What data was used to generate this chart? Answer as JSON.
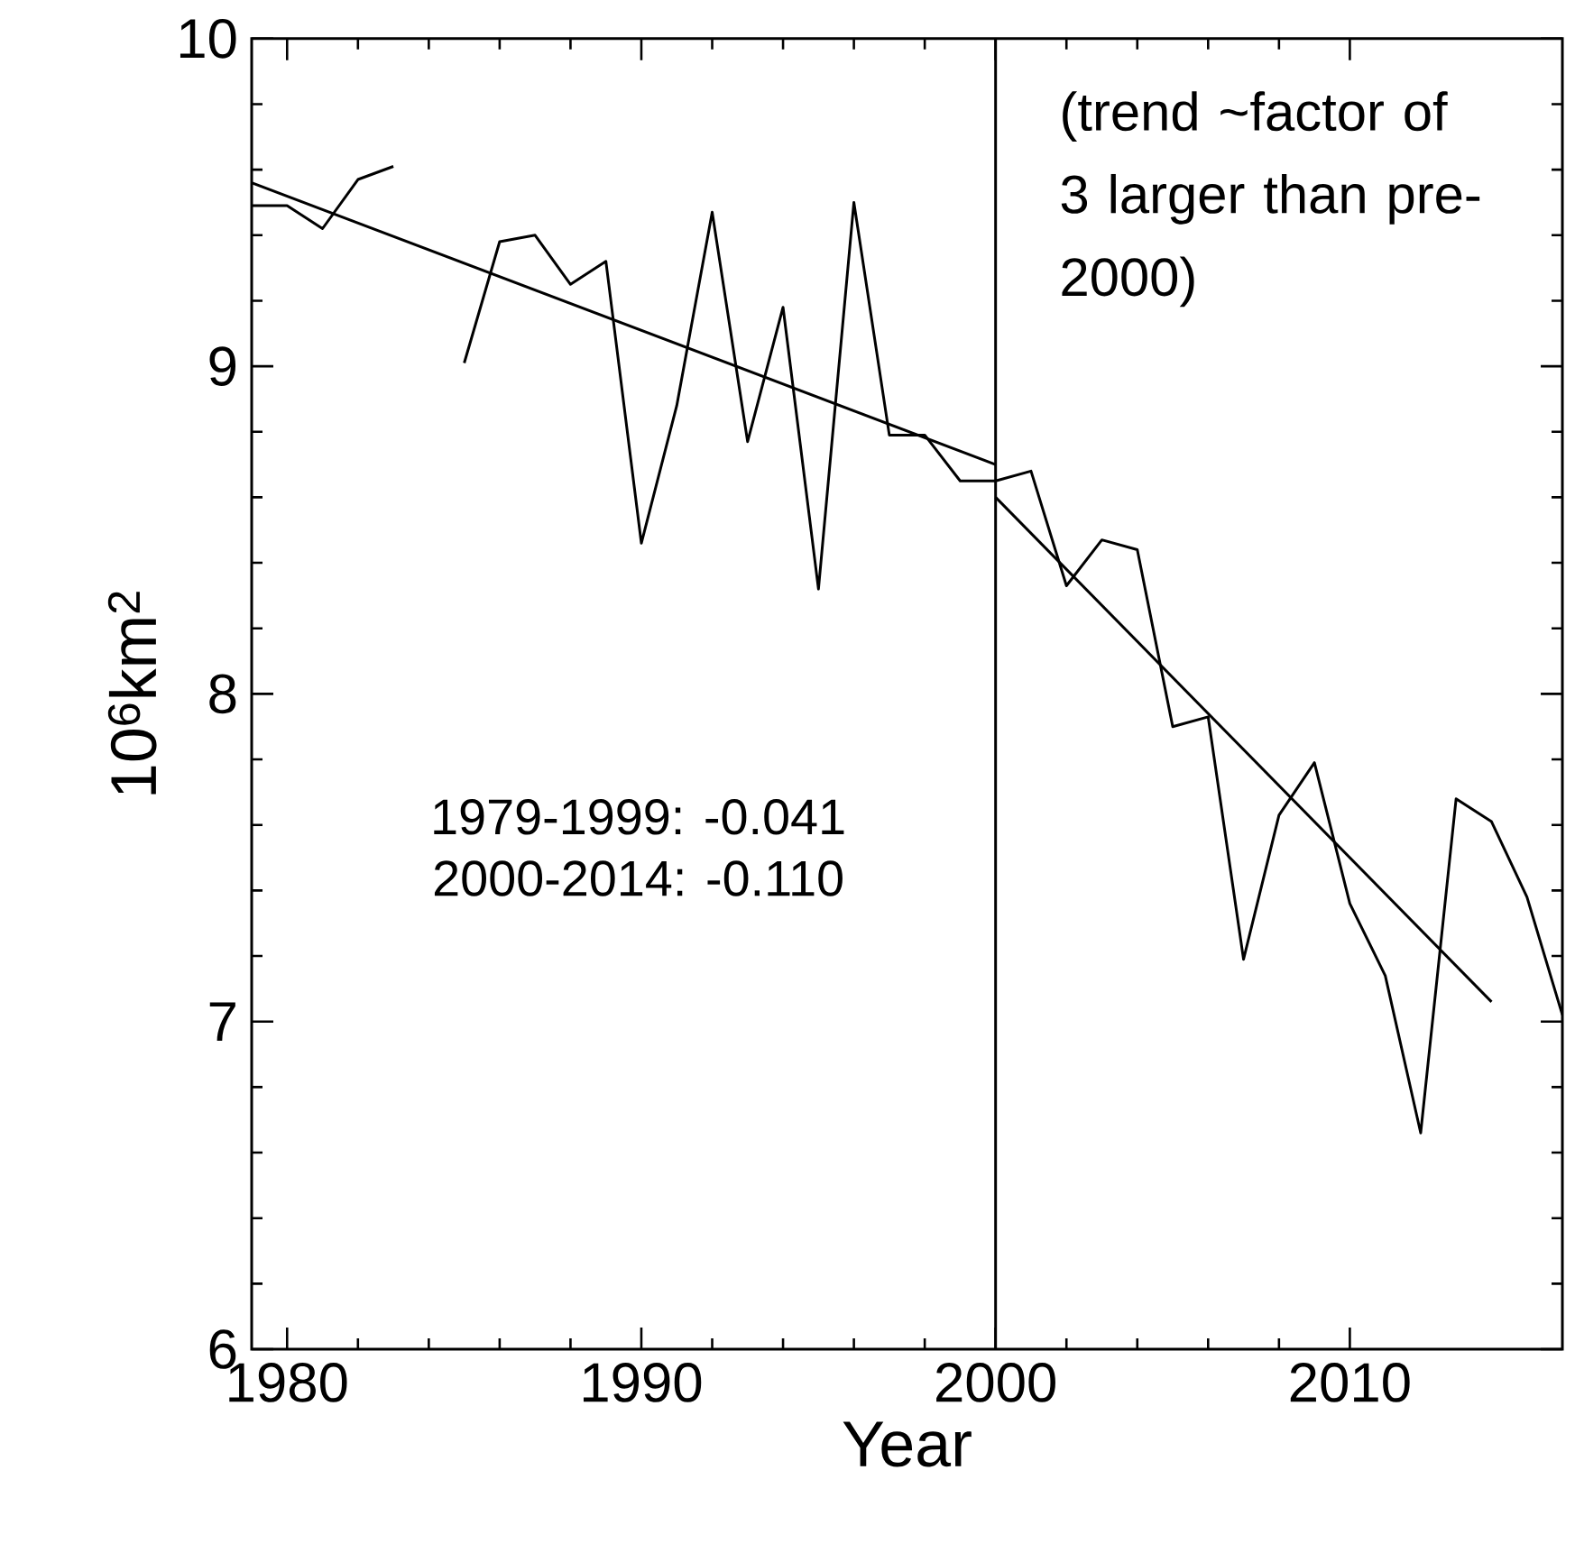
{
  "chart_data": {
    "type": "line",
    "xlabel": "Year",
    "ylabel": "10$^{6}$km$^{2}$",
    "xlim": [
      1979,
      2016
    ],
    "ylim": [
      6,
      10
    ],
    "xticks": [
      1980,
      1990,
      2000,
      2010
    ],
    "yticks": [
      6,
      7,
      8,
      9,
      10
    ],
    "grid": false,
    "marker": "none",
    "line_style": "solid",
    "ref_lines": [
      {
        "axis": "x",
        "value": 2000,
        "color": "#000000"
      }
    ],
    "annotations": [
      "(trend ~factor of 3 larger than pre-2000)",
      "1979-1999: -0.041",
      "2000-2014: -0.110"
    ],
    "series": [
      {
        "color": "#000000",
        "x": [
          1979,
          1980,
          1981,
          1982,
          1983,
          1984,
          1985,
          1986,
          1987,
          1988,
          1989,
          1990,
          1991,
          1992,
          1993,
          1994,
          1995,
          1996,
          1997,
          1998,
          1999,
          2000,
          2001,
          2002,
          2003,
          2004,
          2005,
          2006,
          2007,
          2008,
          2009,
          2010,
          2011,
          2012,
          2013,
          2014,
          2015,
          2016
        ],
        "values": [
          9.49,
          9.49,
          9.42,
          9.57,
          9.61,
          null,
          9.01,
          9.38,
          9.4,
          9.25,
          9.32,
          8.46,
          8.88,
          9.47,
          8.77,
          9.18,
          8.32,
          9.5,
          8.79,
          8.79,
          8.65,
          8.65,
          8.68,
          8.33,
          8.47,
          8.44,
          7.9,
          7.93,
          7.19,
          7.63,
          7.79,
          7.36,
          7.14,
          6.66,
          7.68,
          7.61,
          7.38,
          7.02
        ]
      },
      {
        "color": "#000000",
        "x": [
          1979,
          2000
        ],
        "values": [
          9.56,
          8.7
        ]
      },
      {
        "color": "#000000",
        "x": [
          2000,
          2014
        ],
        "values": [
          8.6,
          7.06
        ]
      }
    ]
  }
}
